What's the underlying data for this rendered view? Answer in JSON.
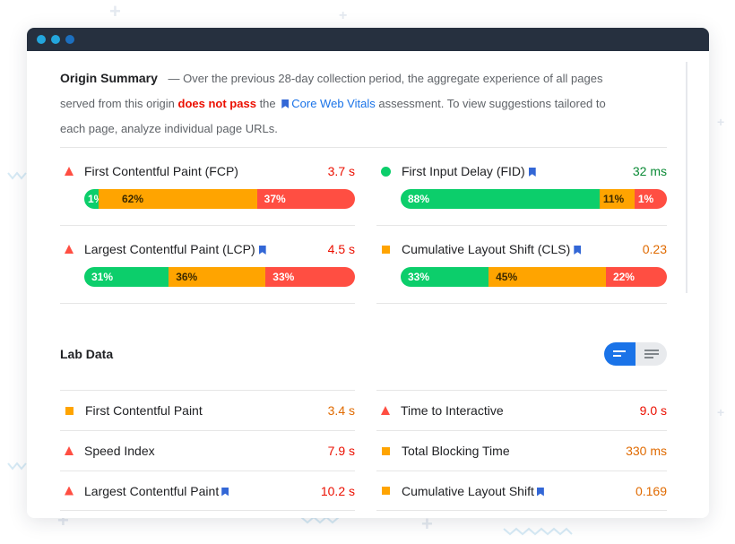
{
  "origin_summary": {
    "title": "Origin Summary",
    "text_before": "— Over the previous 28-day collection period, the aggregate experience of all pages served from this origin",
    "verdict": "does not pass",
    "text_the": "the",
    "link": "Core Web Vitals",
    "text_after": "assessment. To view suggestions tailored to each page, analyze individual page URLs."
  },
  "field_metrics": [
    {
      "name": "First Contentful Paint (FCP)",
      "value": "3.7 s",
      "icon": "warning-triangle-icon",
      "status": "poor",
      "distribution": [
        {
          "label": "1%",
          "pct": 1
        },
        {
          "label": "62%",
          "pct": 62
        },
        {
          "label": "37%",
          "pct": 37
        }
      ]
    },
    {
      "name": "First Input Delay (FID)",
      "value": "32 ms",
      "icon": "pass-circle-icon",
      "status": "good",
      "distribution": [
        {
          "label": "88%",
          "pct": 88
        },
        {
          "label": "11%",
          "pct": 11
        },
        {
          "label": "1%",
          "pct": 1
        }
      ]
    },
    {
      "name": "Largest Contentful Paint (LCP)",
      "value": "4.5 s",
      "icon": "warning-triangle-icon",
      "status": "poor",
      "distribution": [
        {
          "label": "31%",
          "pct": 31
        },
        {
          "label": "36%",
          "pct": 36
        },
        {
          "label": "33%",
          "pct": 33
        }
      ]
    },
    {
      "name": "Cumulative Layout Shift (CLS)",
      "value": "0.23",
      "icon": "average-square-icon",
      "status": "average",
      "distribution": [
        {
          "label": "33%",
          "pct": 33
        },
        {
          "label": "45%",
          "pct": 45
        },
        {
          "label": "22%",
          "pct": 22
        }
      ]
    }
  ],
  "lab_data": {
    "title": "Lab Data",
    "toggle": [
      "list-view-icon",
      "detail-view-icon"
    ],
    "items": [
      {
        "name": "First Contentful Paint",
        "value": "3.4 s",
        "icon": "average-square-icon"
      },
      {
        "name": "Time to Interactive",
        "value": "9.0 s",
        "icon": "warning-triangle-icon"
      },
      {
        "name": "Speed Index",
        "value": "7.9 s",
        "icon": "warning-triangle-icon"
      },
      {
        "name": "Total Blocking Time",
        "value": "330 ms",
        "icon": "average-square-icon"
      },
      {
        "name": "Largest Contentful Paint",
        "value": "10.2 s",
        "icon": "warning-triangle-icon"
      },
      {
        "name": "Cumulative Layout Shift",
        "value": "0.169",
        "icon": "average-square-icon"
      }
    ]
  },
  "colors": {
    "good": "#0cce6b",
    "average": "#ffa400",
    "poor": "#ff4e42",
    "titlebar": "#26303f",
    "accent": "#1a73e8"
  }
}
